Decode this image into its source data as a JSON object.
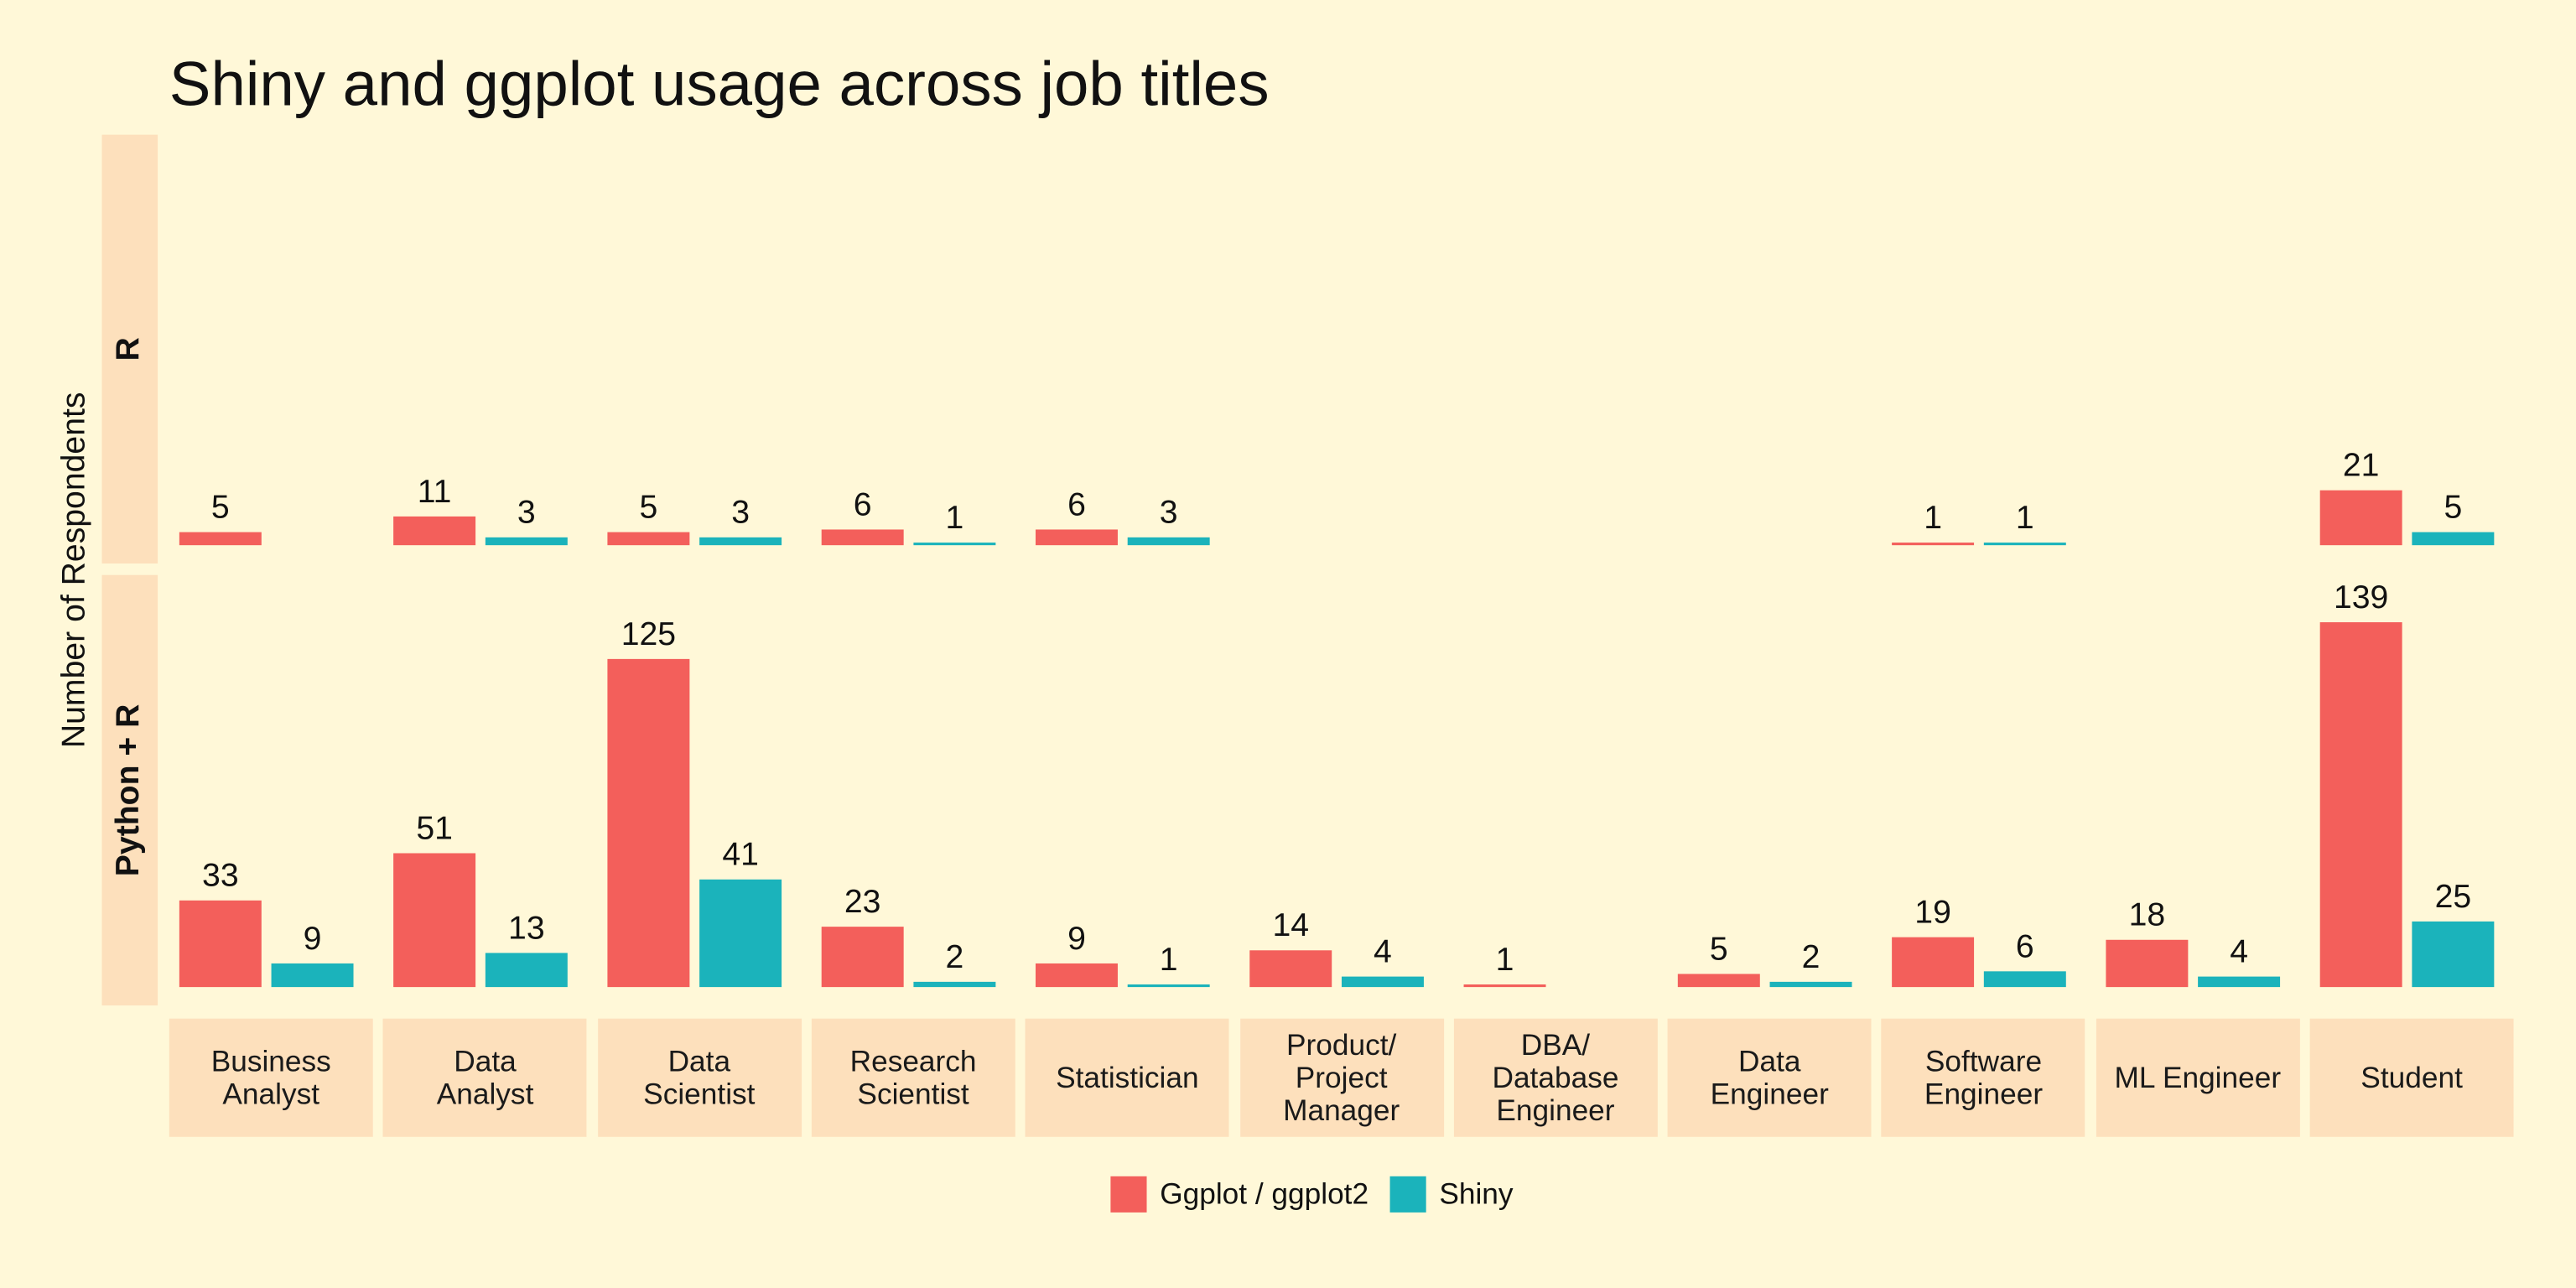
{
  "chart_data": {
    "type": "bar",
    "title": "Shiny and ggplot usage across job titles",
    "y_label": "Number of Respondents",
    "facets": [
      "R",
      "Python + R"
    ],
    "categories": [
      "Business\nAnalyst",
      "Data\nAnalyst",
      "Data\nScientist",
      "Research\nScientist",
      "Statistician",
      "Product/\nProject\nManager",
      "DBA/\nDatabase\nEngineer",
      "Data\nEngineer",
      "Software\nEngineer",
      "ML Engineer",
      "Student"
    ],
    "series": [
      {
        "name": "Ggplot / ggplot2",
        "color": "#f35f5b",
        "values": [
          [
            5,
            11,
            5,
            6,
            6,
            null,
            null,
            null,
            1,
            null,
            21
          ],
          [
            33,
            51,
            125,
            23,
            9,
            14,
            1,
            5,
            19,
            18,
            139
          ]
        ]
      },
      {
        "name": "Shiny",
        "color": "#1bb3bb",
        "values": [
          [
            null,
            3,
            3,
            1,
            3,
            null,
            null,
            null,
            1,
            null,
            5
          ],
          [
            9,
            13,
            41,
            2,
            1,
            4,
            null,
            2,
            6,
            4,
            25
          ]
        ]
      }
    ],
    "ylim": [
      -7,
      157
    ]
  }
}
